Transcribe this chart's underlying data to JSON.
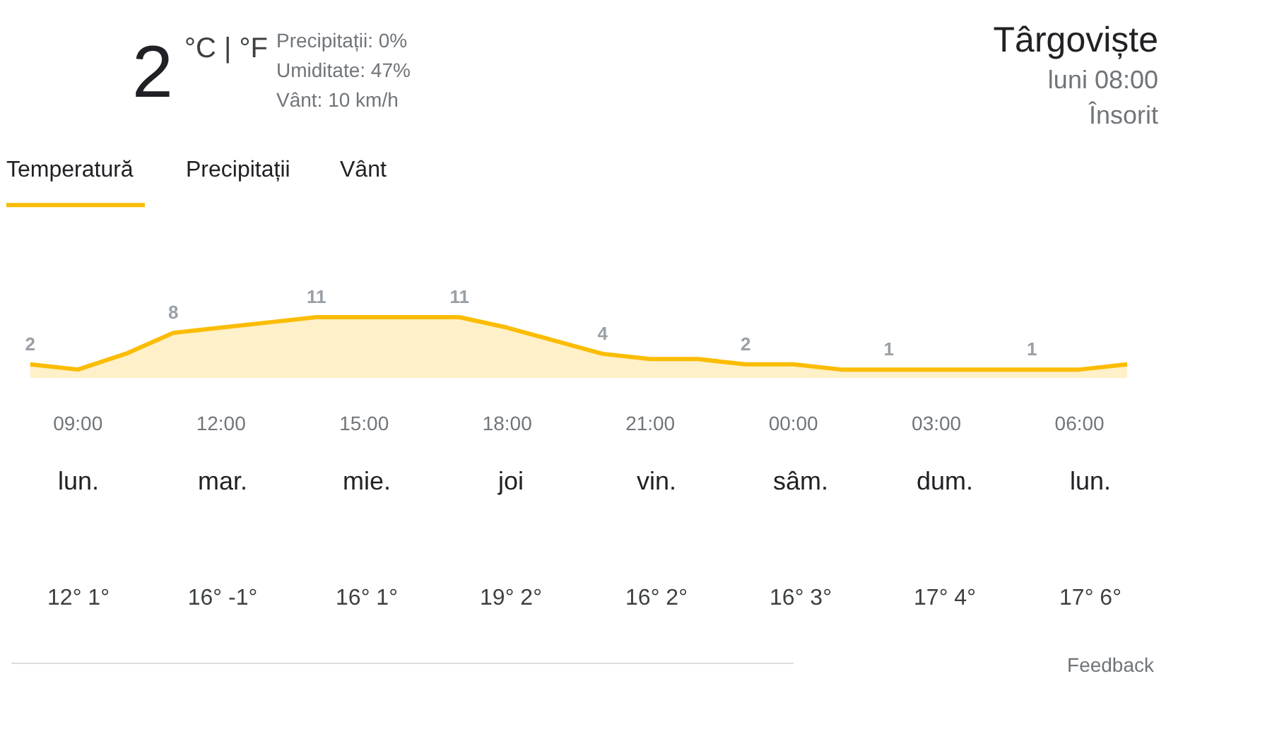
{
  "chart_data": {
    "type": "area",
    "categories": [
      null,
      "09:00",
      null,
      null,
      "12:00",
      null,
      null,
      "15:00",
      null,
      null,
      "18:00",
      null,
      null,
      "21:00",
      null,
      null,
      "00:00",
      null,
      null,
      "03:00",
      null,
      null,
      "06:00",
      null
    ],
    "series": [
      {
        "color": "#fbbc04",
        "values": [
          2,
          1,
          4,
          8,
          9,
          10,
          11,
          11,
          11,
          11,
          9,
          6.5,
          4,
          3,
          3,
          2,
          2,
          1,
          1,
          1,
          1,
          1,
          1,
          2
        ],
        "value_labels": [
          "2",
          null,
          null,
          "8",
          null,
          null,
          "11",
          null,
          null,
          "11",
          null,
          null,
          "4",
          null,
          null,
          "2",
          null,
          null,
          "1",
          null,
          null,
          "1",
          null,
          null
        ]
      }
    ],
    "tick_labels": "x",
    "grid": false,
    "marker": "none",
    "line_style": "solid",
    "annotations": [
      "2",
      "°C | °F",
      "Precipitații: 0%",
      "Umiditate: 47%",
      "Vânt: 10 km/h",
      "Târgoviște",
      "luni 08:00",
      "Însorit",
      "Temperatură",
      "Precipitații",
      "Vânt",
      "lun.",
      "mar.",
      "mie.",
      "joi",
      "vin.",
      "sâm.",
      "dum.",
      "lun.",
      "12° 1°",
      "16° -1°",
      "16° 1°",
      "19° 2°",
      "16° 2°",
      "16° 3°",
      "17° 4°",
      "17° 6°",
      "Feedback"
    ]
  }
}
